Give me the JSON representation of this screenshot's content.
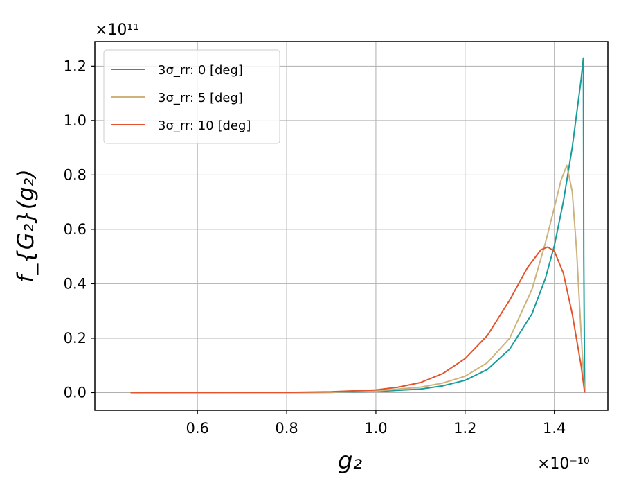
{
  "chart_data": {
    "type": "line",
    "xlabel": "g₂",
    "ylabel": "f_{G₂}(g₂)",
    "x_multiplier": "×10⁻¹⁰",
    "y_multiplier": "×10¹¹",
    "xlim": [
      0.37,
      1.52
    ],
    "ylim": [
      -0.065,
      1.29
    ],
    "xticks": [
      0.6,
      0.8,
      1.0,
      1.2,
      1.4
    ],
    "xtick_labels": [
      "0.6",
      "0.8",
      "1.0",
      "1.2",
      "1.4"
    ],
    "yticks": [
      0.0,
      0.2,
      0.4,
      0.6,
      0.8,
      1.0,
      1.2
    ],
    "ytick_labels": [
      "0.0",
      "0.2",
      "0.4",
      "0.6",
      "0.8",
      "1.0",
      "1.2"
    ],
    "grid": true,
    "legend_position": "top-left",
    "series": [
      {
        "name": "3σ_rr: 0 [deg]",
        "color": "#169c9a",
        "x": [
          0.45,
          0.8,
          0.9,
          1.0,
          1.1,
          1.15,
          1.2,
          1.25,
          1.3,
          1.35,
          1.38,
          1.4,
          1.42,
          1.44,
          1.46,
          1.465,
          1.466,
          1.468
        ],
        "y": [
          0.0,
          0.0,
          0.001,
          0.004,
          0.013,
          0.025,
          0.045,
          0.085,
          0.16,
          0.29,
          0.42,
          0.54,
          0.7,
          0.9,
          1.15,
          1.23,
          0.5,
          0.0
        ]
      },
      {
        "name": "3σ_rr: 5 [deg]",
        "color": "#cdb27d",
        "x": [
          0.45,
          0.8,
          0.9,
          1.0,
          1.1,
          1.15,
          1.2,
          1.25,
          1.3,
          1.35,
          1.38,
          1.4,
          1.415,
          1.428,
          1.44,
          1.45,
          1.46,
          1.468
        ],
        "y": [
          0.0,
          0.0,
          0.001,
          0.006,
          0.02,
          0.035,
          0.06,
          0.11,
          0.2,
          0.38,
          0.55,
          0.68,
          0.78,
          0.835,
          0.74,
          0.52,
          0.22,
          0.0
        ]
      },
      {
        "name": "3σ_rr: 10 [deg]",
        "color": "#e4532b",
        "x": [
          0.45,
          0.8,
          0.9,
          1.0,
          1.05,
          1.1,
          1.15,
          1.2,
          1.25,
          1.3,
          1.34,
          1.37,
          1.385,
          1.4,
          1.42,
          1.44,
          1.46,
          1.468
        ],
        "y": [
          0.0,
          0.001,
          0.003,
          0.01,
          0.02,
          0.037,
          0.07,
          0.125,
          0.21,
          0.34,
          0.46,
          0.525,
          0.535,
          0.52,
          0.44,
          0.29,
          0.1,
          0.0
        ]
      }
    ]
  }
}
